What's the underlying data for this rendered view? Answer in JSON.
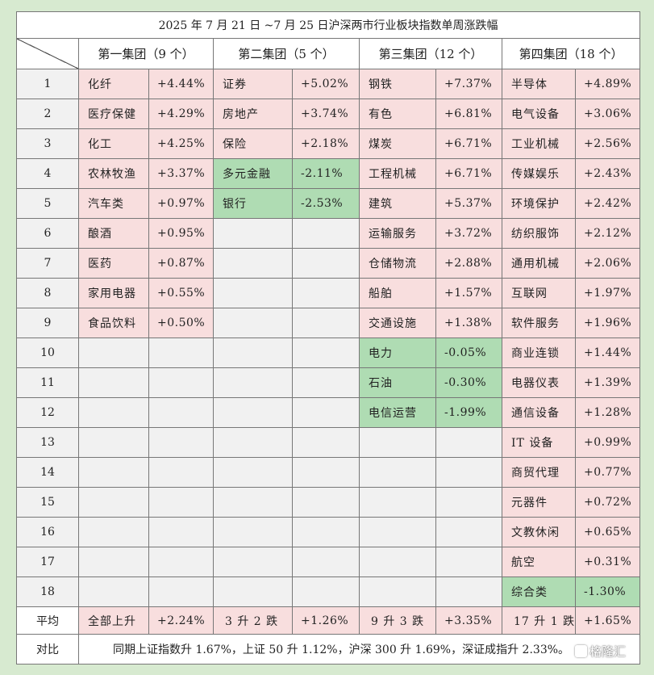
{
  "title": "2025 年 7 月 21 日 ~7 月 25 日沪深两市行业板块指数单周涨跌幅",
  "groups": [
    "第一集团（9 个）",
    "第二集团（5 个）",
    "第三集团（12 个）",
    "第四集团（18 个）"
  ],
  "colors": {
    "up": "#f8dede",
    "down": "#afdcb3",
    "empty": "#f1f1f1",
    "background": "#d7ead0"
  },
  "rows": [
    {
      "rank": "1",
      "cells": [
        {
          "name": "化纤",
          "value": "+4.44%",
          "color": "up"
        },
        {
          "name": "证券",
          "value": "+5.02%",
          "color": "up"
        },
        {
          "name": "钢铁",
          "value": "+7.37%",
          "color": "up"
        },
        {
          "name": "半导体",
          "value": "+4.89%",
          "color": "up"
        }
      ]
    },
    {
      "rank": "2",
      "cells": [
        {
          "name": "医疗保健",
          "value": "+4.29%",
          "color": "up"
        },
        {
          "name": "房地产",
          "value": "+3.74%",
          "color": "up"
        },
        {
          "name": "有色",
          "value": "+6.81%",
          "color": "up"
        },
        {
          "name": "电气设备",
          "value": "+3.06%",
          "color": "up"
        }
      ]
    },
    {
      "rank": "3",
      "cells": [
        {
          "name": "化工",
          "value": "+4.25%",
          "color": "up"
        },
        {
          "name": "保险",
          "value": "+2.18%",
          "color": "up"
        },
        {
          "name": "煤炭",
          "value": "+6.71%",
          "color": "up"
        },
        {
          "name": "工业机械",
          "value": "+2.56%",
          "color": "up"
        }
      ]
    },
    {
      "rank": "4",
      "cells": [
        {
          "name": "农林牧渔",
          "value": "+3.37%",
          "color": "up"
        },
        {
          "name": "多元金融",
          "value": "-2.11%",
          "color": "down"
        },
        {
          "name": "工程机械",
          "value": "+6.71%",
          "color": "up"
        },
        {
          "name": "传媒娱乐",
          "value": "+2.43%",
          "color": "up"
        }
      ]
    },
    {
      "rank": "5",
      "cells": [
        {
          "name": "汽车类",
          "value": "+0.97%",
          "color": "up"
        },
        {
          "name": "银行",
          "value": "-2.53%",
          "color": "down"
        },
        {
          "name": "建筑",
          "value": "+5.37%",
          "color": "up"
        },
        {
          "name": "环境保护",
          "value": "+2.42%",
          "color": "up"
        }
      ]
    },
    {
      "rank": "6",
      "cells": [
        {
          "name": "酿酒",
          "value": "+0.95%",
          "color": "up"
        },
        null,
        {
          "name": "运输服务",
          "value": "+3.72%",
          "color": "up"
        },
        {
          "name": "纺织服饰",
          "value": "+2.12%",
          "color": "up"
        }
      ]
    },
    {
      "rank": "7",
      "cells": [
        {
          "name": "医药",
          "value": "+0.87%",
          "color": "up"
        },
        null,
        {
          "name": "仓储物流",
          "value": "+2.88%",
          "color": "up"
        },
        {
          "name": "通用机械",
          "value": "+2.06%",
          "color": "up"
        }
      ]
    },
    {
      "rank": "8",
      "cells": [
        {
          "name": "家用电器",
          "value": "+0.55%",
          "color": "up"
        },
        null,
        {
          "name": "船舶",
          "value": "+1.57%",
          "color": "up"
        },
        {
          "name": "互联网",
          "value": "+1.97%",
          "color": "up"
        }
      ]
    },
    {
      "rank": "9",
      "cells": [
        {
          "name": "食品饮料",
          "value": "+0.50%",
          "color": "up"
        },
        null,
        {
          "name": "交通设施",
          "value": "+1.38%",
          "color": "up"
        },
        {
          "name": "软件服务",
          "value": "+1.96%",
          "color": "up"
        }
      ]
    },
    {
      "rank": "10",
      "cells": [
        null,
        null,
        {
          "name": "电力",
          "value": "-0.05%",
          "color": "down"
        },
        {
          "name": "商业连锁",
          "value": "+1.44%",
          "color": "up"
        }
      ]
    },
    {
      "rank": "11",
      "cells": [
        null,
        null,
        {
          "name": "石油",
          "value": "-0.30%",
          "color": "down"
        },
        {
          "name": "电器仪表",
          "value": "+1.39%",
          "color": "up"
        }
      ]
    },
    {
      "rank": "12",
      "cells": [
        null,
        null,
        {
          "name": "电信运营",
          "value": "-1.99%",
          "color": "down"
        },
        {
          "name": "通信设备",
          "value": "+1.28%",
          "color": "up"
        }
      ]
    },
    {
      "rank": "13",
      "cells": [
        null,
        null,
        null,
        {
          "name": "IT 设备",
          "value": "+0.99%",
          "color": "up"
        }
      ]
    },
    {
      "rank": "14",
      "cells": [
        null,
        null,
        null,
        {
          "name": "商贸代理",
          "value": "+0.77%",
          "color": "up"
        }
      ]
    },
    {
      "rank": "15",
      "cells": [
        null,
        null,
        null,
        {
          "name": "元器件",
          "value": "+0.72%",
          "color": "up"
        }
      ]
    },
    {
      "rank": "16",
      "cells": [
        null,
        null,
        null,
        {
          "name": "文教休闲",
          "value": "+0.65%",
          "color": "up"
        }
      ]
    },
    {
      "rank": "17",
      "cells": [
        null,
        null,
        null,
        {
          "name": "航空",
          "value": "+0.31%",
          "color": "up"
        }
      ]
    },
    {
      "rank": "18",
      "cells": [
        null,
        null,
        null,
        {
          "name": "综合类",
          "value": "-1.30%",
          "color": "down"
        }
      ]
    }
  ],
  "average": {
    "label": "平均",
    "cells": [
      {
        "name": "全部上升",
        "value": "+2.24%",
        "color": "up"
      },
      {
        "name": "3 升 2 跌",
        "value": "+1.26%",
        "color": "up"
      },
      {
        "name": "9 升 3 跌",
        "value": "+3.35%",
        "color": "up"
      },
      {
        "name": "17 升 1 跌",
        "value": "+1.65%",
        "color": "up"
      }
    ]
  },
  "comparison": {
    "label": "对比",
    "text": "同期上证指数升 1.67%，上证 50 升 1.12%，沪深 300 升 1.69%，深证成指升 2.33%。"
  },
  "watermark": "格隆汇"
}
